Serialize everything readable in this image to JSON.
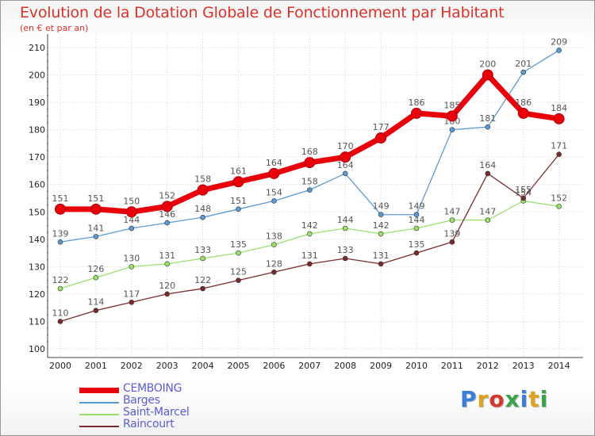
{
  "title": "Evolution de la Dotation Globale de Fonctionnement par Habitant",
  "subtitle": "(en € et par an)",
  "logo": {
    "text": "Proxiti",
    "letter_colors": [
      "#3b7dd8",
      "#e0a020",
      "#d03a2a",
      "#3aa34a",
      "#3b7dd8",
      "#e0a020",
      "#3aa34a"
    ]
  },
  "chart_data": {
    "type": "line",
    "title": "Evolution de la Dotation Globale de Fonctionnement par Habitant",
    "subtitle": "(en € et par an)",
    "x": [
      "2000",
      "2001",
      "2002",
      "2003",
      "2004",
      "2005",
      "2006",
      "2007",
      "2008",
      "2009",
      "2010",
      "2011",
      "2012",
      "2013",
      "2014"
    ],
    "yticks": [
      "100",
      "110",
      "120",
      "130",
      "140",
      "150",
      "160",
      "170",
      "180",
      "190",
      "200",
      "210"
    ],
    "ylim": [
      100,
      210
    ],
    "grid": true,
    "legend_position": "bottom-left",
    "series": [
      {
        "name": "CEMBOING",
        "color": "#e8000b",
        "emphasis": true,
        "values": [
          151,
          151,
          150,
          152,
          158,
          161,
          164,
          168,
          170,
          177,
          186,
          185,
          200,
          186,
          184
        ],
        "labels": [
          "151",
          "151",
          "150",
          "152",
          "158",
          "161",
          "164",
          "168",
          "170",
          "177",
          "186",
          "185",
          "200",
          "186",
          "184"
        ]
      },
      {
        "name": "Barges",
        "color": "#5b9bd5",
        "values": [
          139,
          141,
          144,
          146,
          148,
          151,
          154,
          158,
          164,
          149,
          149,
          180,
          181,
          201,
          209
        ],
        "labels": [
          "139",
          "141",
          "144",
          "146",
          "148",
          "151",
          "154",
          "158",
          "164",
          "149",
          "149",
          "180",
          "181",
          "201",
          "209"
        ]
      },
      {
        "name": "Saint-Marcel",
        "color": "#99e26a",
        "values": [
          122,
          126,
          130,
          131,
          133,
          135,
          138,
          142,
          144,
          142,
          144,
          147,
          147,
          154,
          152
        ],
        "labels": [
          "122",
          "126",
          "130",
          "131",
          "133",
          "135",
          "138",
          "142",
          "144",
          "142",
          "144",
          "147",
          "147",
          "154",
          "152"
        ]
      },
      {
        "name": "Raincourt",
        "color": "#7a2a2a",
        "values": [
          110,
          114,
          117,
          120,
          122,
          125,
          128,
          131,
          133,
          131,
          135,
          139,
          164,
          155,
          171
        ],
        "labels": [
          "110",
          "114",
          "117",
          "120",
          "122",
          "125",
          "128",
          "131",
          "133",
          "131",
          "135",
          "139",
          "164",
          "155",
          "171"
        ]
      }
    ]
  }
}
